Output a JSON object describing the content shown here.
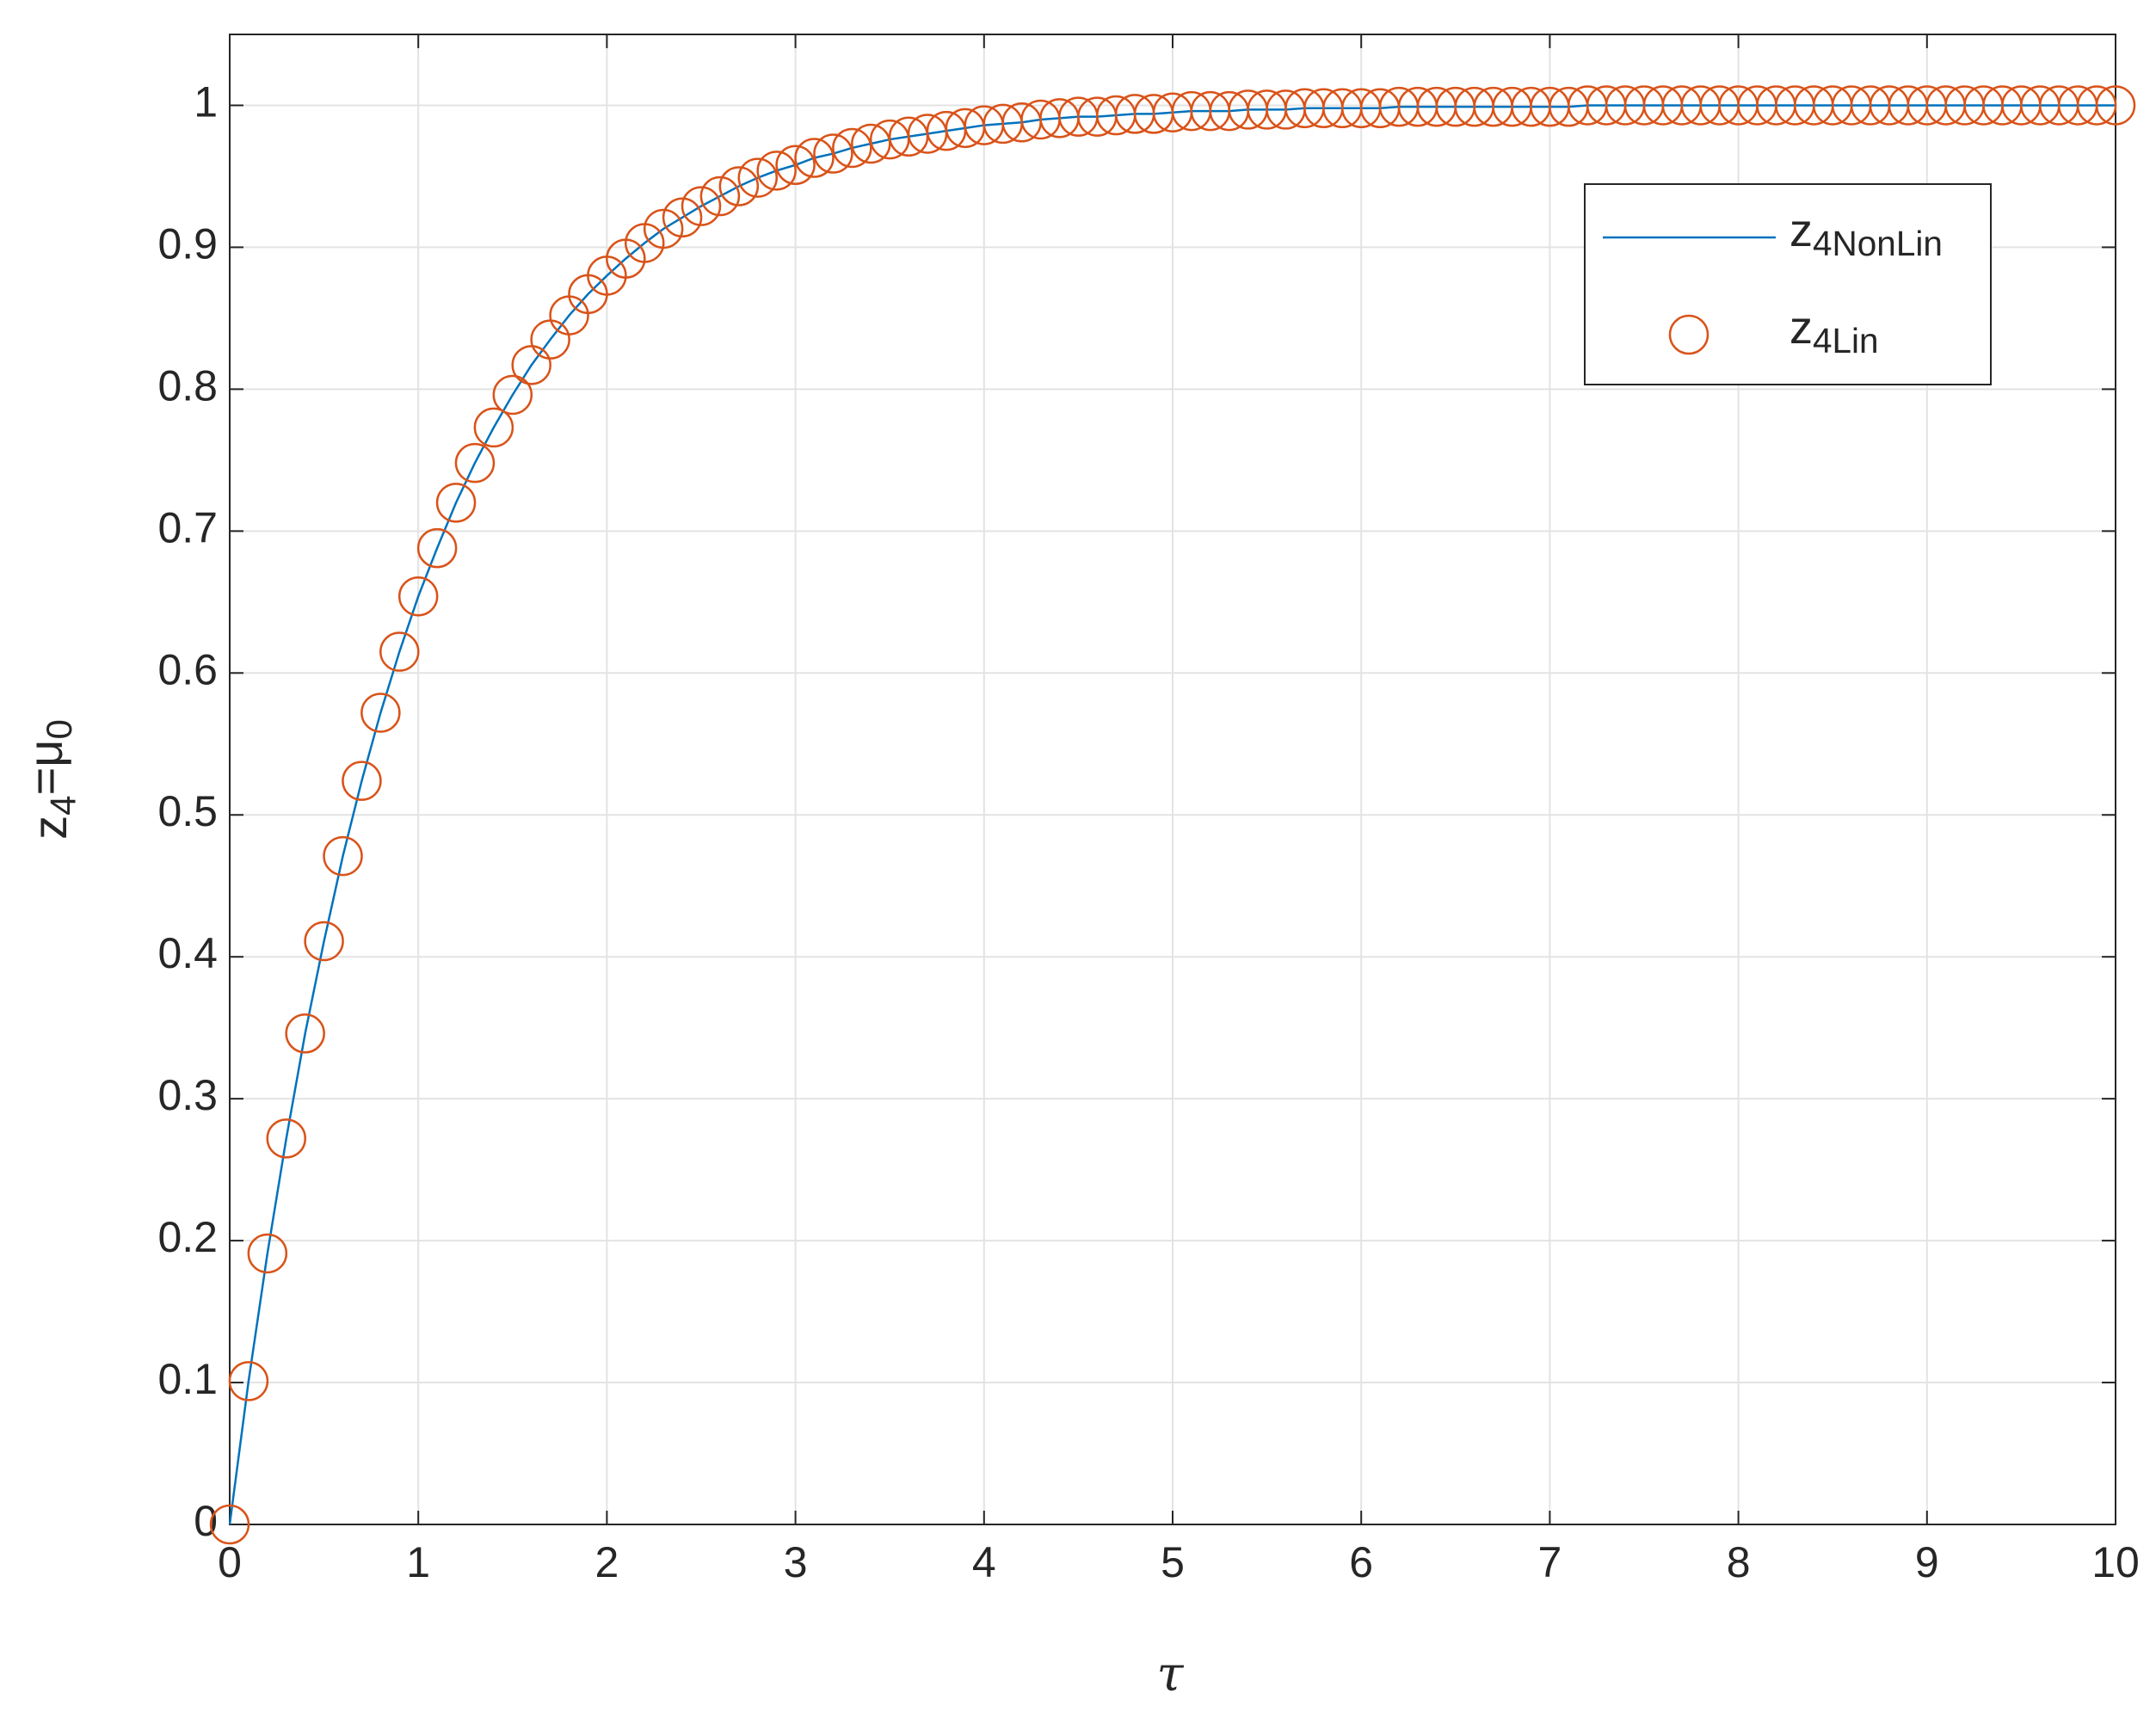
{
  "chart_data": {
    "type": "line",
    "xlabel": "τ",
    "ylabel": "z_{4}=μ_{0}",
    "x": [
      0,
      0.1,
      0.2,
      0.3,
      0.4,
      0.5,
      0.6,
      0.7,
      0.8,
      0.9,
      1,
      1.1,
      1.2,
      1.3,
      1.4,
      1.5,
      1.6,
      1.7,
      1.8,
      1.9,
      2,
      2.1,
      2.2,
      2.3,
      2.4,
      2.5,
      2.6,
      2.7,
      2.8,
      2.9,
      3,
      3.1,
      3.2,
      3.3,
      3.4,
      3.5,
      3.6,
      3.7,
      3.8,
      3.9,
      4,
      4.1,
      4.2,
      4.3,
      4.4,
      4.5,
      4.6,
      4.7,
      4.8,
      4.9,
      5,
      5.1,
      5.2,
      5.3,
      5.4,
      5.5,
      5.6,
      5.7,
      5.8,
      5.9,
      6,
      6.1,
      6.2,
      6.3,
      6.4,
      6.5,
      6.6,
      6.7,
      6.8,
      6.9,
      7,
      7.1,
      7.2,
      7.3,
      7.4,
      7.5,
      7.6,
      7.7,
      7.8,
      7.9,
      8,
      8.1,
      8.2,
      8.3,
      8.4,
      8.5,
      8.6,
      8.7,
      8.8,
      8.9,
      9,
      9.1,
      9.2,
      9.3,
      9.4,
      9.5,
      9.6,
      9.7,
      9.8,
      9.9,
      10
    ],
    "series": [
      {
        "name": "z_{4NonLin}",
        "color": "#0072bd",
        "style": "line",
        "values": [
          0,
          0.101,
          0.191,
          0.272,
          0.346,
          0.411,
          0.471,
          0.524,
          0.572,
          0.615,
          0.654,
          0.688,
          0.72,
          0.748,
          0.773,
          0.796,
          0.817,
          0.835,
          0.852,
          0.867,
          0.88,
          0.892,
          0.903,
          0.913,
          0.921,
          0.929,
          0.936,
          0.943,
          0.949,
          0.954,
          0.958,
          0.963,
          0.966,
          0.97,
          0.973,
          0.976,
          0.978,
          0.98,
          0.982,
          0.984,
          0.986,
          0.987,
          0.988,
          0.99,
          0.991,
          0.992,
          0.992,
          0.993,
          0.994,
          0.994,
          0.995,
          0.996,
          0.996,
          0.996,
          0.997,
          0.997,
          0.997,
          0.998,
          0.998,
          0.998,
          0.998,
          0.998,
          0.999,
          0.999,
          0.999,
          0.999,
          0.999,
          0.999,
          0.999,
          0.999,
          0.999,
          0.999,
          1,
          1,
          1,
          1,
          1,
          1,
          1,
          1,
          1,
          1,
          1,
          1,
          1,
          1,
          1,
          1,
          1,
          1,
          1,
          1,
          1,
          1,
          1,
          1,
          1,
          1,
          1,
          1,
          1
        ]
      },
      {
        "name": "z_{4Lin}",
        "color": "#d95319",
        "style": "marker",
        "values": [
          0,
          0.101,
          0.191,
          0.272,
          0.346,
          0.411,
          0.471,
          0.524,
          0.572,
          0.615,
          0.654,
          0.688,
          0.72,
          0.748,
          0.773,
          0.796,
          0.817,
          0.835,
          0.852,
          0.867,
          0.88,
          0.892,
          0.903,
          0.913,
          0.921,
          0.929,
          0.936,
          0.943,
          0.949,
          0.954,
          0.958,
          0.963,
          0.966,
          0.97,
          0.973,
          0.976,
          0.978,
          0.98,
          0.982,
          0.984,
          0.986,
          0.987,
          0.988,
          0.99,
          0.991,
          0.992,
          0.992,
          0.993,
          0.994,
          0.994,
          0.995,
          0.996,
          0.996,
          0.996,
          0.997,
          0.997,
          0.997,
          0.998,
          0.998,
          0.998,
          0.998,
          0.998,
          0.999,
          0.999,
          0.999,
          0.999,
          0.999,
          0.999,
          0.999,
          0.999,
          0.999,
          0.999,
          1,
          1,
          1,
          1,
          1,
          1,
          1,
          1,
          1,
          1,
          1,
          1,
          1,
          1,
          1,
          1,
          1,
          1,
          1,
          1,
          1,
          1,
          1,
          1,
          1,
          1,
          1,
          1,
          1
        ]
      }
    ],
    "xlim": [
      0,
      10
    ],
    "xticks": [
      0,
      1,
      2,
      3,
      4,
      5,
      6,
      7,
      8,
      9,
      10
    ],
    "ylim": [
      0,
      1.05
    ],
    "yticks": [
      0,
      0.1,
      0.2,
      0.3,
      0.4,
      0.5,
      0.6,
      0.7,
      0.8,
      0.9,
      1
    ],
    "grid": true,
    "legend": "northeast"
  }
}
